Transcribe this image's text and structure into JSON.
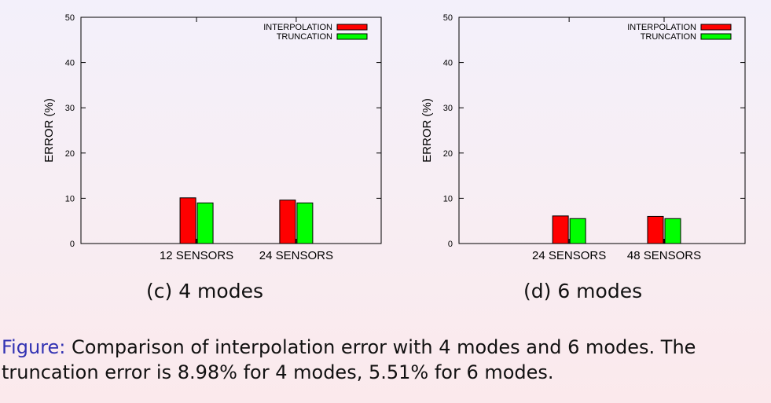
{
  "chart_data": [
    {
      "type": "bar",
      "ylabel": "ERROR (%)",
      "ylim": [
        0,
        50
      ],
      "yticks": [
        0,
        10,
        20,
        30,
        40,
        50
      ],
      "categories": [
        "12 SENSORS",
        "24 SENSORS"
      ],
      "series": [
        {
          "name": "INTERPOLATION",
          "values": [
            10.1,
            9.6
          ],
          "color": "#ff0000"
        },
        {
          "name": "TRUNCATION",
          "values": [
            8.98,
            8.98
          ],
          "color": "#00ff00"
        }
      ],
      "legend": "top-right",
      "grid": false,
      "subcaption": "(c) 4 modes"
    },
    {
      "type": "bar",
      "ylabel": "ERROR (%)",
      "ylim": [
        0,
        50
      ],
      "yticks": [
        0,
        10,
        20,
        30,
        40,
        50
      ],
      "categories": [
        "24 SENSORS",
        "48 SENSORS"
      ],
      "series": [
        {
          "name": "INTERPOLATION",
          "values": [
            6.1,
            6.0
          ],
          "color": "#ff0000"
        },
        {
          "name": "TRUNCATION",
          "values": [
            5.51,
            5.51
          ],
          "color": "#00ff00"
        }
      ],
      "legend": "top-right",
      "grid": false,
      "subcaption": "(d) 6 modes"
    }
  ],
  "caption": {
    "prefix": "Figure:",
    "text": "Comparison of interpolation error with 4 modes and 6 modes. The truncation error is 8.98% for 4 modes, 5.51% for 6 modes."
  }
}
